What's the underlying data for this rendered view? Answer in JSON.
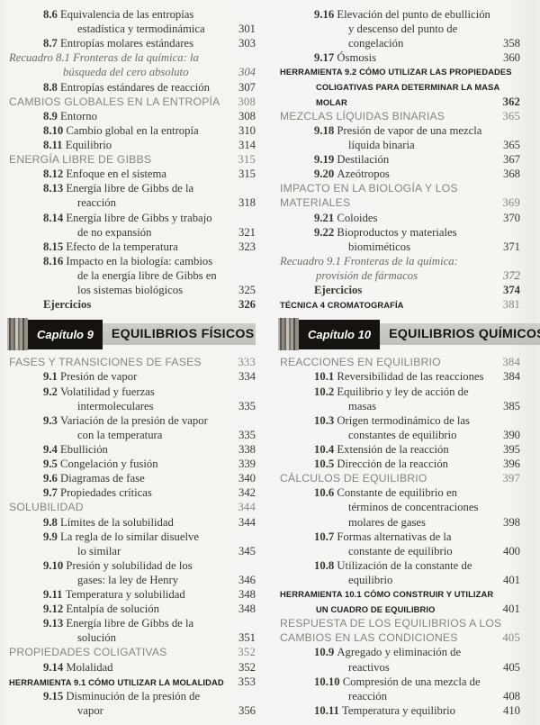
{
  "page": {
    "background": "#f5f4f1",
    "accent_black": "#16130f",
    "bar_gray": "#c8c7c2",
    "section_gray": "#87857e",
    "text_color": "#3a362f"
  },
  "columns": {
    "left": {
      "items": [
        {
          "type": "entry",
          "num": "8.6",
          "lines": [
            "Equivalencia de las entropías",
            "estadística y termodinámica"
          ],
          "page": "301"
        },
        {
          "type": "entry",
          "num": "8.7",
          "lines": [
            "Entropías molares estándares"
          ],
          "page": "303"
        },
        {
          "type": "recuadro",
          "lines": [
            "Recuadro 8.1 Fronteras de la química: la",
            "búsqueda del cero absoluto"
          ],
          "page": "304"
        },
        {
          "type": "entry",
          "num": "8.8",
          "lines": [
            "Entropías estándares de reacción"
          ],
          "page": "307"
        },
        {
          "type": "section",
          "lines": [
            "CAMBIOS GLOBALES EN LA ENTROPÍA"
          ],
          "page": "308"
        },
        {
          "type": "entry",
          "num": "8.9",
          "lines": [
            "Entorno"
          ],
          "page": "308"
        },
        {
          "type": "entry",
          "num": "8.10",
          "lines": [
            "Cambio global en la entropía"
          ],
          "page": "310"
        },
        {
          "type": "entry",
          "num": "8.11",
          "lines": [
            "Equilibrio"
          ],
          "page": "314"
        },
        {
          "type": "section",
          "lines": [
            "ENERGÍA LIBRE DE GIBBS"
          ],
          "page": "315"
        },
        {
          "type": "entry",
          "num": "8.12",
          "lines": [
            "Enfoque en el sistema"
          ],
          "page": "315"
        },
        {
          "type": "entry",
          "num": "8.13",
          "lines": [
            "Energía libre de Gibbs de la",
            "reacción"
          ],
          "page": "318"
        },
        {
          "type": "entry",
          "num": "8.14",
          "lines": [
            "Energía libre de Gibbs y trabajo",
            "de no expansión"
          ],
          "page": "321"
        },
        {
          "type": "entry",
          "num": "8.15",
          "lines": [
            "Efecto de la temperatura"
          ],
          "page": "323"
        },
        {
          "type": "entry",
          "num": "8.16",
          "lines": [
            "Impacto en la biología: cambios",
            "de la energía libre de Gibbs en",
            "los sistemas biológicos"
          ],
          "page": "325"
        },
        {
          "type": "exercises",
          "lines": [
            "Ejercicios"
          ],
          "page": "326"
        },
        {
          "type": "chapter",
          "chip": "Capítulo 9",
          "title": "EQUILIBRIOS FÍSICOS"
        },
        {
          "type": "section",
          "lines": [
            "FASES Y TRANSICIONES DE FASES"
          ],
          "page": "333"
        },
        {
          "type": "entry",
          "num": "9.1",
          "lines": [
            "Presión de vapor"
          ],
          "page": "334"
        },
        {
          "type": "entry",
          "num": "9.2",
          "lines": [
            "Volatilidad y fuerzas",
            "intermoleculares"
          ],
          "page": "335"
        },
        {
          "type": "entry",
          "num": "9.3",
          "lines": [
            "Variación de la presión de vapor",
            "con la temperatura"
          ],
          "page": "335"
        },
        {
          "type": "entry",
          "num": "9.4",
          "lines": [
            "Ebullición"
          ],
          "page": "338"
        },
        {
          "type": "entry",
          "num": "9.5",
          "lines": [
            "Congelación y fusión"
          ],
          "page": "339"
        },
        {
          "type": "entry",
          "num": "9.6",
          "lines": [
            "Diagramas de fase"
          ],
          "page": "340"
        },
        {
          "type": "entry",
          "num": "9.7",
          "lines": [
            "Propiedades críticas"
          ],
          "page": "342"
        },
        {
          "type": "section",
          "lines": [
            "SOLUBILIDAD"
          ],
          "page": "344"
        },
        {
          "type": "entry",
          "num": "9.8",
          "lines": [
            "Límites de la solubilidad"
          ],
          "page": "344"
        },
        {
          "type": "entry",
          "num": "9.9",
          "lines": [
            "La regla de lo similar disuelve",
            "lo similar"
          ],
          "page": "345"
        },
        {
          "type": "entry",
          "num": "9.10",
          "lines": [
            "Presión y solubilidad de los",
            "gases: la ley de Henry"
          ],
          "page": "346"
        },
        {
          "type": "entry",
          "num": "9.11",
          "lines": [
            "Temperatura y solubilidad"
          ],
          "page": "348"
        },
        {
          "type": "entry",
          "num": "9.12",
          "lines": [
            "Entalpía de solución"
          ],
          "page": "348"
        },
        {
          "type": "entry",
          "num": "9.13",
          "lines": [
            "Energía libre de Gibbs de la",
            "solución"
          ],
          "page": "351"
        },
        {
          "type": "section",
          "lines": [
            "PROPIEDADES COLIGATIVAS"
          ],
          "page": "352"
        },
        {
          "type": "entry",
          "num": "9.14",
          "lines": [
            "Molalidad"
          ],
          "page": "352"
        },
        {
          "type": "tool",
          "lines": [
            "HERRAMIENTA 9.1 CÓMO UTILIZAR LA MOLALIDAD"
          ],
          "page": "353"
        },
        {
          "type": "entry",
          "num": "9.15",
          "lines": [
            "Disminución de la presión de",
            "vapor"
          ],
          "page": "356"
        }
      ]
    },
    "right": {
      "items": [
        {
          "type": "entry",
          "num": "9.16",
          "lines": [
            "Elevación del punto de ebullición",
            "y descenso del punto de",
            "congelación"
          ],
          "page": "358"
        },
        {
          "type": "entry",
          "num": "9.17",
          "lines": [
            "Ósmosis"
          ],
          "page": "360"
        },
        {
          "type": "tool",
          "lines": [
            "HERRAMIENTA 9.2 CÓMO UTILIZAR LAS PROPIEDADES",
            "COLIGATIVAS PARA DETERMINAR LA MASA",
            "MOLAR"
          ],
          "page": "362",
          "pb": true
        },
        {
          "type": "section",
          "lines": [
            "MEZCLAS LÍQUIDAS BINARIAS"
          ],
          "page": "365"
        },
        {
          "type": "entry",
          "num": "9.18",
          "lines": [
            "Presión de vapor de una mezcla",
            "líquida binaria"
          ],
          "page": "365"
        },
        {
          "type": "entry",
          "num": "9.19",
          "lines": [
            "Destilación"
          ],
          "page": "367"
        },
        {
          "type": "entry",
          "num": "9.20",
          "lines": [
            "Azeótropos"
          ],
          "page": "368"
        },
        {
          "type": "section",
          "lines": [
            "IMPACTO EN LA BIOLOGÍA Y LOS",
            "MATERIALES"
          ],
          "page": "369"
        },
        {
          "type": "entry",
          "num": "9.21",
          "lines": [
            "Coloides"
          ],
          "page": "370"
        },
        {
          "type": "entry",
          "num": "9.22",
          "lines": [
            "Bioproductos y materiales",
            "biomiméticos"
          ],
          "page": "371"
        },
        {
          "type": "recuadro",
          "lines": [
            "Recuadro 9.1 Fronteras de la química:",
            "provisión de fármacos"
          ],
          "page": "372"
        },
        {
          "type": "exercises",
          "lines": [
            "Ejercicios"
          ],
          "page": "374"
        },
        {
          "type": "tecnica",
          "lines": [
            "TÉCNICA 4 CROMATOGRAFÍA"
          ],
          "page": "381"
        },
        {
          "type": "chapter",
          "chip": "Capítulo 10",
          "title": "EQUILIBRIOS QUÍMICOS"
        },
        {
          "type": "section",
          "lines": [
            "REACCIONES EN EQUILIBRIO"
          ],
          "page": "384"
        },
        {
          "type": "entry",
          "num": "10.1",
          "lines": [
            "Reversibilidad de las reacciones"
          ],
          "page": "384"
        },
        {
          "type": "entry",
          "num": "10.2",
          "lines": [
            "Equilibrio y ley de acción de",
            "masas"
          ],
          "page": "385"
        },
        {
          "type": "entry",
          "num": "10.3",
          "lines": [
            "Origen termodinámico de las",
            "constantes de equilibrio"
          ],
          "page": "390"
        },
        {
          "type": "entry",
          "num": "10.4",
          "lines": [
            "Extensión de la reacción"
          ],
          "page": "395"
        },
        {
          "type": "entry",
          "num": "10.5",
          "lines": [
            "Dirección de la reacción"
          ],
          "page": "396"
        },
        {
          "type": "section",
          "lines": [
            "CÁLCULOS DE EQUILIBRIO"
          ],
          "page": "397"
        },
        {
          "type": "entry",
          "num": "10.6",
          "lines": [
            "Constante de equilibrio en",
            "términos de concentraciones",
            "molares de gases"
          ],
          "page": "398"
        },
        {
          "type": "entry",
          "num": "10.7",
          "lines": [
            "Formas alternativas de la",
            "constante de equilibrio"
          ],
          "page": "400"
        },
        {
          "type": "entry",
          "num": "10.8",
          "lines": [
            "Utilización de la constante de",
            "equilibrio"
          ],
          "page": "401"
        },
        {
          "type": "tool",
          "lines": [
            "HERRAMIENTA 10.1 CÓMO CONSTRUIR Y UTILIZAR",
            "UN CUADRO DE EQUILIBRIO"
          ],
          "page": "401"
        },
        {
          "type": "section",
          "lines": [
            "RESPUESTA DE LOS EQUILIBRIOS A LOS",
            "CAMBIOS EN LAS CONDICIONES"
          ],
          "page": "405"
        },
        {
          "type": "entry",
          "num": "10.9",
          "lines": [
            "Agregado y eliminación de",
            "reactivos"
          ],
          "page": "405"
        },
        {
          "type": "entry",
          "num": "10.10",
          "lines": [
            "Compresión de una mezcla de",
            "reacción"
          ],
          "page": "408"
        },
        {
          "type": "entry",
          "num": "10.11",
          "lines": [
            "Temperatura y equilibrio"
          ],
          "page": "410"
        }
      ]
    }
  }
}
